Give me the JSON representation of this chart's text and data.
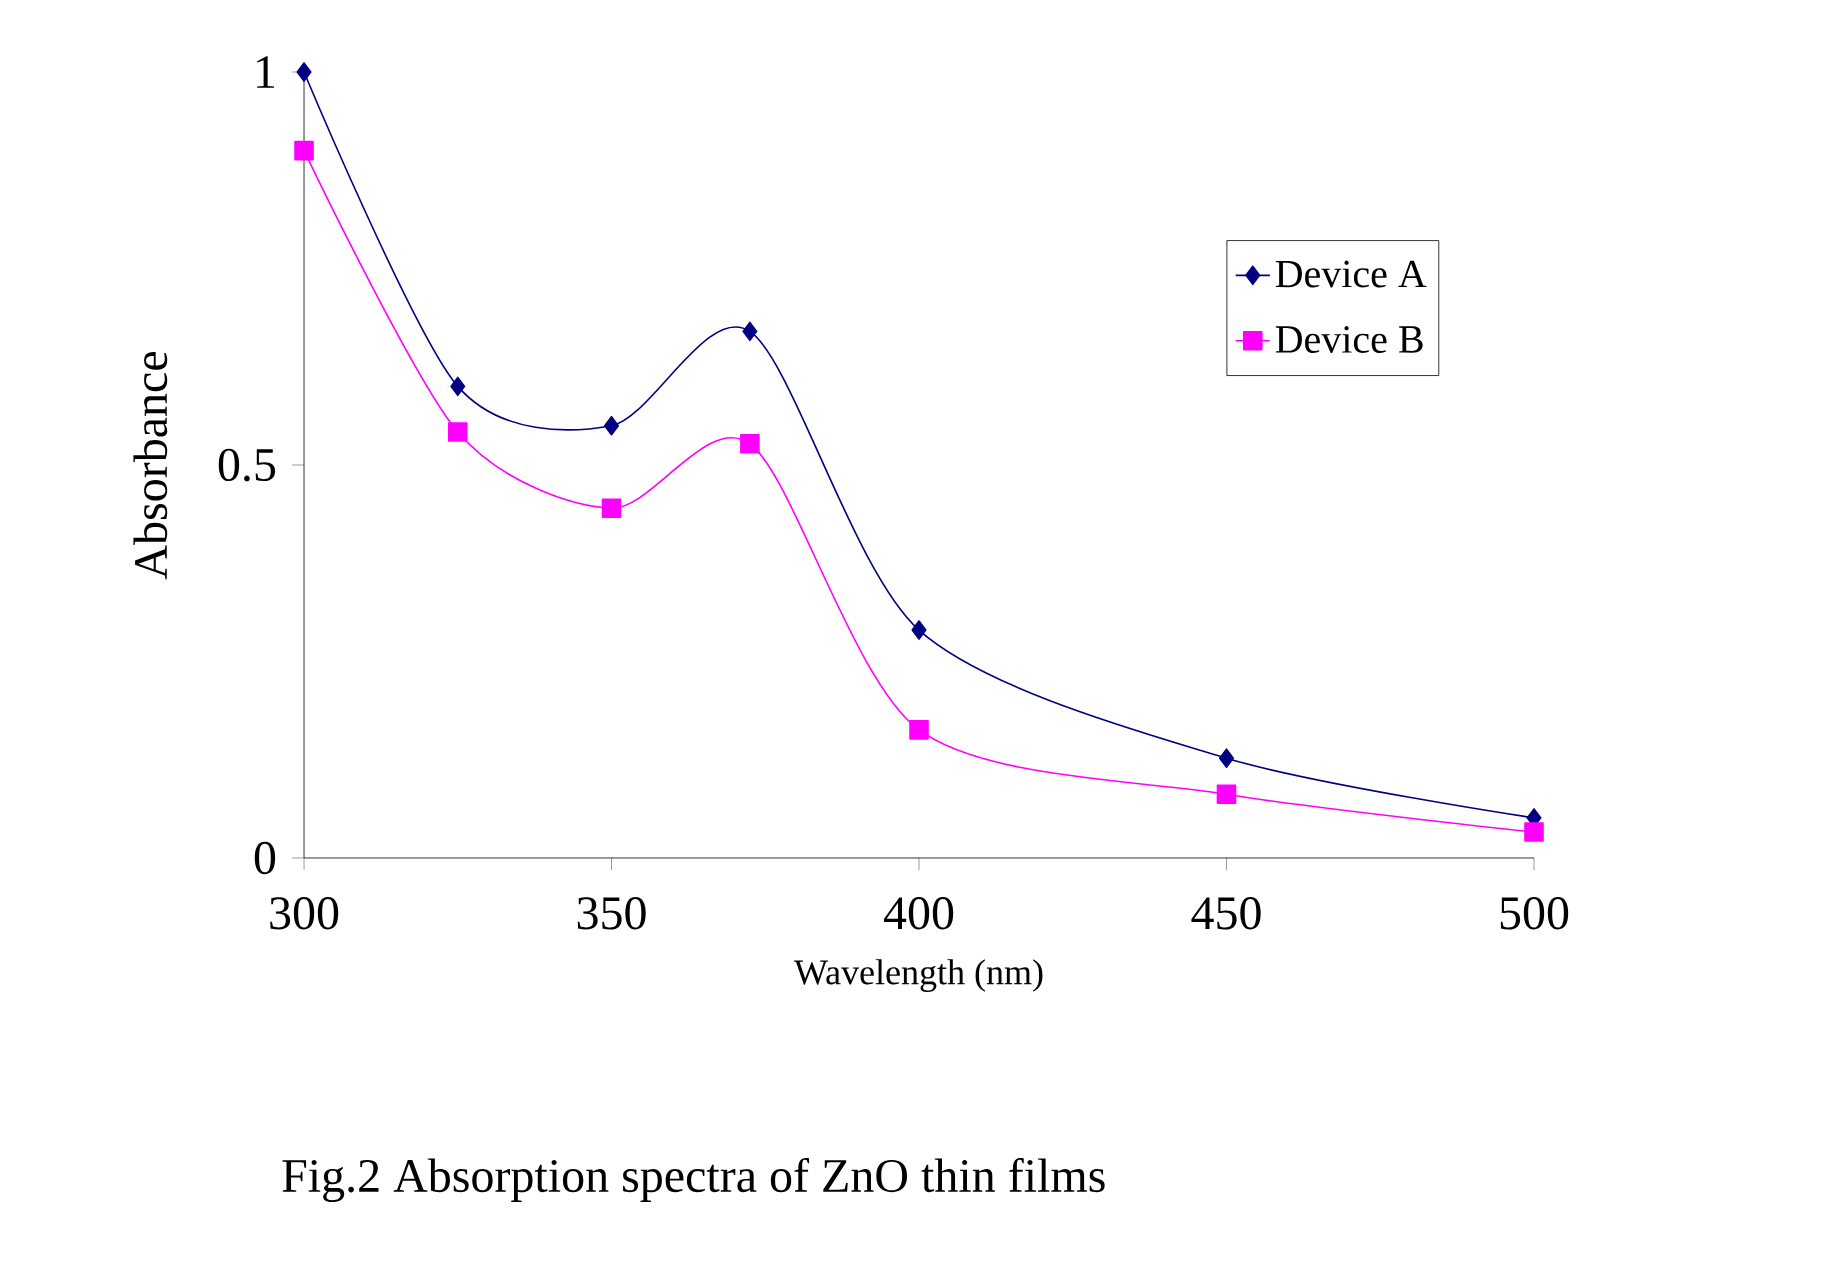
{
  "chart_data": {
    "type": "line",
    "title": "Fig.2  Absorption spectra of ZnO thin films",
    "xlabel": "Wavelength (nm)",
    "ylabel": "Absorbance",
    "xlim": [
      300,
      500
    ],
    "xticks": [
      300,
      350,
      400,
      450,
      500
    ],
    "ylim": [
      0,
      1
    ],
    "yticks": [
      0,
      0.5,
      1
    ],
    "legend": "top right",
    "grid": false,
    "line_style": "solid",
    "series": [
      {
        "name": "Device A",
        "color": "#000080",
        "marker": "diamond",
        "x": [
          300,
          325,
          350,
          372.5,
          400,
          450,
          500
        ],
        "values": [
          1.0,
          0.6,
          0.55,
          0.67,
          0.29,
          0.127,
          0.051
        ]
      },
      {
        "name": "Device B",
        "color": "#ff00ff",
        "marker": "square",
        "x": [
          300,
          325,
          350,
          372.5,
          400,
          450,
          500
        ],
        "values": [
          0.9,
          0.542,
          0.445,
          0.527,
          0.163,
          0.081,
          0.033
        ]
      }
    ]
  }
}
